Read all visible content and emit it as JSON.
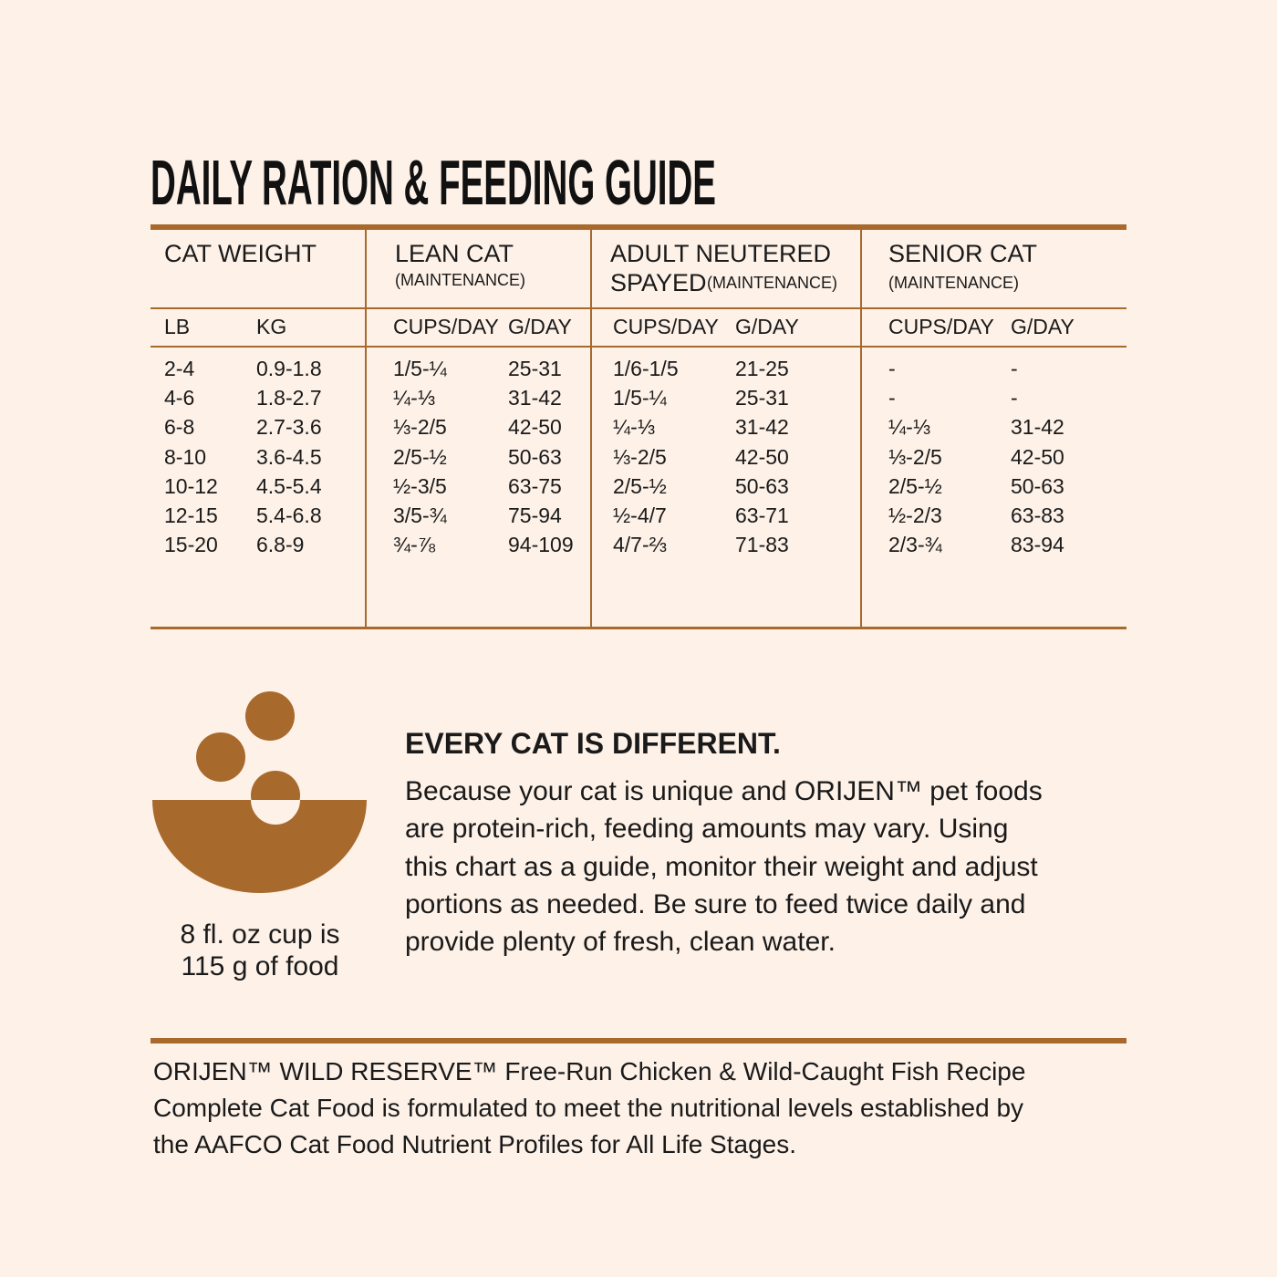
{
  "title": "DAILY RATION & FEEDING GUIDE",
  "table": {
    "groups": [
      {
        "title": "CAT WEIGHT"
      },
      {
        "title": "LEAN CAT",
        "note": "(MAINTENANCE)"
      },
      {
        "title_lines": [
          "ADULT NEUTERED",
          "SPAYED"
        ],
        "note": "(MAINTENANCE)"
      },
      {
        "title": "SENIOR CAT",
        "note": "(MAINTENANCE)"
      }
    ],
    "subheaders": [
      "LB",
      "KG",
      "CUPS/DAY",
      "G/DAY",
      "CUPS/DAY",
      "G/DAY",
      "CUPS/DAY",
      "G/DAY"
    ],
    "rows": [
      [
        "2-4",
        "0.9-1.8",
        "1/5-¼",
        "25-31",
        "1/6-1/5",
        "21-25",
        "-",
        "-"
      ],
      [
        "4-6",
        "1.8-2.7",
        "¼-⅓",
        "31-42",
        "1/5-¼",
        "25-31",
        "-",
        "-"
      ],
      [
        "6-8",
        "2.7-3.6",
        "⅓-2/5",
        "42-50",
        "¼-⅓",
        "31-42",
        "¼-⅓",
        "31-42"
      ],
      [
        "8-10",
        "3.6-4.5",
        "2/5-½",
        "50-63",
        "⅓-2/5",
        "42-50",
        "⅓-2/5",
        "42-50"
      ],
      [
        "10-12",
        "4.5-5.4",
        "½-3/5",
        "63-75",
        "2/5-½",
        "50-63",
        "2/5-½",
        "50-63"
      ],
      [
        "12-15",
        "5.4-6.8",
        "3/5-¾",
        "75-94",
        "½-4/7",
        "63-71",
        "½-2/3",
        "63-83"
      ],
      [
        "15-20",
        "6.8-9",
        "¾-⅞",
        "94-109",
        "4/7-⅔",
        "71-83",
        "2/3-¾",
        "83-94"
      ]
    ]
  },
  "cup_note": {
    "lines": [
      "8 fl. oz cup is",
      "115 g of food"
    ]
  },
  "info": {
    "heading": "EVERY CAT IS DIFFERENT.",
    "lines": [
      "Because your cat is unique and ORIJEN™ pet foods",
      "are protein-rich, feeding amounts may vary. Using",
      "this chart as a guide, monitor their weight and adjust",
      "portions as needed. Be sure to feed twice daily and",
      "provide plenty of fresh, clean water."
    ]
  },
  "footer": {
    "lines": [
      "ORIJEN™ WILD RESERVE™ Free-Run Chicken & Wild-Caught Fish Recipe",
      "Complete Cat Food is formulated to meet the nutritional levels established by",
      "the AAFCO Cat Food Nutrient Profiles for All Life Stages."
    ]
  }
}
